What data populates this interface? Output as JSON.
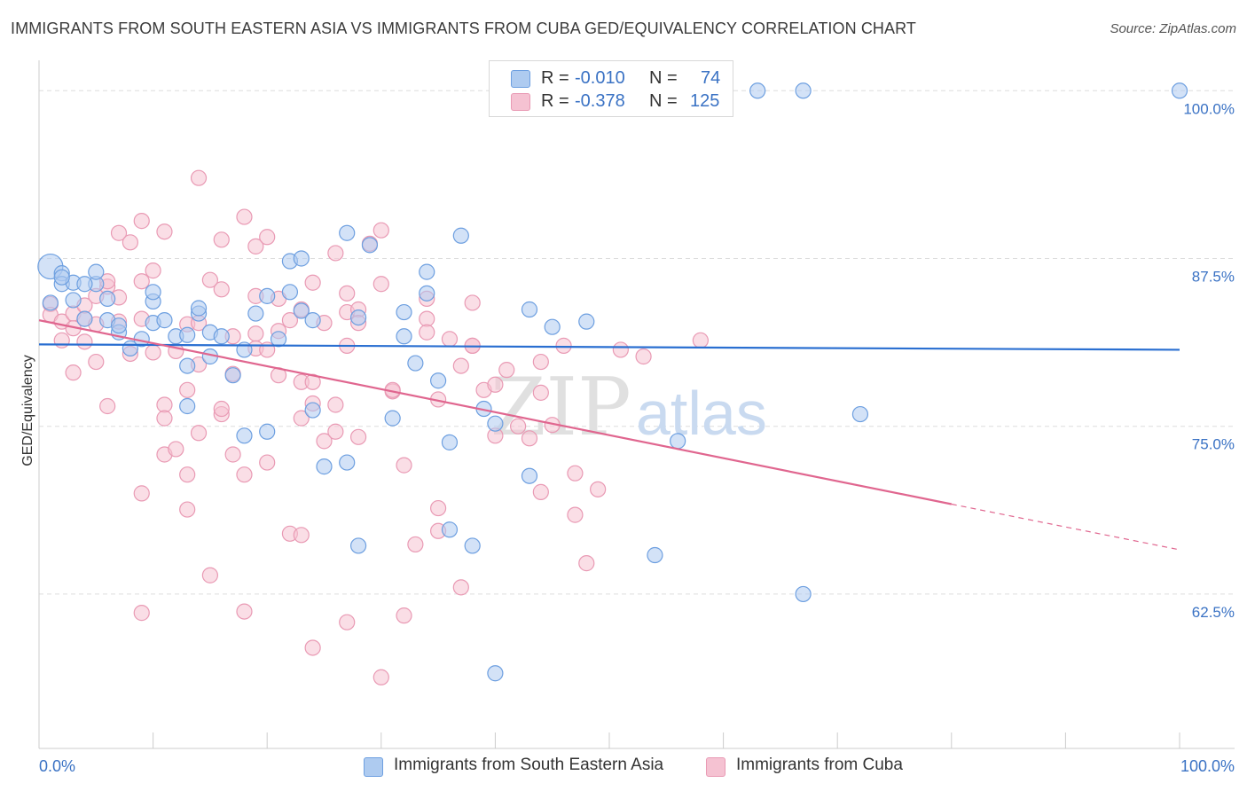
{
  "header": {
    "title": "IMMIGRANTS FROM SOUTH EASTERN ASIA VS IMMIGRANTS FROM CUBA GED/EQUIVALENCY CORRELATION CHART",
    "source": "Source: ZipAtlas.com"
  },
  "legend": {
    "rows": [
      {
        "r_label": "R =",
        "r_value": "-0.010",
        "n_label": "N =",
        "n_value": "74"
      },
      {
        "r_label": "R =",
        "r_value": "-0.378",
        "n_label": "N =",
        "n_value": "125"
      }
    ]
  },
  "watermark": {
    "zip": "ZIP",
    "atlas": "atlas"
  },
  "chart_data": {
    "type": "scatter",
    "title": "IMMIGRANTS FROM SOUTH EASTERN ASIA VS IMMIGRANTS FROM CUBA GED/EQUIVALENCY CORRELATION CHART",
    "ylabel": "GED/Equivalency",
    "xlim": [
      0,
      100
    ],
    "ylim": [
      51,
      102
    ],
    "x_tick_labels": [
      "0.0%",
      "100.0%"
    ],
    "y_ticks": [
      {
        "value": 100,
        "label": "100.0%"
      },
      {
        "value": 87.5,
        "label": "87.5%"
      },
      {
        "value": 75,
        "label": "75.0%"
      },
      {
        "value": 62.5,
        "label": "62.5%"
      }
    ],
    "grid": true,
    "legend_position": "bottom",
    "series": [
      {
        "name": "Immigrants from South Eastern Asia",
        "color": "#6d9fe0",
        "fill": "#aecbf0",
        "r": "-0.010",
        "n": "74",
        "trend": {
          "x0": 0,
          "y0": 81.1,
          "x1": 100,
          "y1": 80.7
        },
        "points": [
          [
            1,
            86.9
          ],
          [
            2,
            86.4
          ],
          [
            2,
            85.6
          ],
          [
            3,
            85.7
          ],
          [
            5,
            85.6
          ],
          [
            5,
            86.5
          ],
          [
            6,
            84.5
          ],
          [
            4,
            83.0
          ],
          [
            6,
            82.9
          ],
          [
            7,
            82.0
          ],
          [
            7,
            82.5
          ],
          [
            8,
            80.8
          ],
          [
            10,
            84.3
          ],
          [
            10,
            82.7
          ],
          [
            11,
            82.9
          ],
          [
            10,
            85.0
          ],
          [
            12,
            81.7
          ],
          [
            13,
            81.8
          ],
          [
            13,
            79.5
          ],
          [
            13,
            76.5
          ],
          [
            14,
            83.4
          ],
          [
            14,
            83.8
          ],
          [
            15,
            82.0
          ],
          [
            16,
            81.7
          ],
          [
            17,
            78.8
          ],
          [
            18,
            80.7
          ],
          [
            18,
            74.3
          ],
          [
            19,
            83.4
          ],
          [
            20,
            84.7
          ],
          [
            20,
            74.6
          ],
          [
            21,
            81.5
          ],
          [
            22,
            87.3
          ],
          [
            22,
            85.0
          ],
          [
            23,
            87.5
          ],
          [
            23,
            83.6
          ],
          [
            24,
            82.9
          ],
          [
            24,
            76.2
          ],
          [
            25,
            72.0
          ],
          [
            27,
            72.3
          ],
          [
            27,
            89.4
          ],
          [
            28,
            66.1
          ],
          [
            28,
            83.1
          ],
          [
            29,
            88.5
          ],
          [
            31,
            75.6
          ],
          [
            32,
            83.5
          ],
          [
            32,
            81.7
          ],
          [
            33,
            79.7
          ],
          [
            34,
            86.5
          ],
          [
            34,
            84.9
          ],
          [
            35,
            78.4
          ],
          [
            36,
            73.8
          ],
          [
            36,
            67.3
          ],
          [
            37,
            89.2
          ],
          [
            38,
            66.1
          ],
          [
            39,
            76.3
          ],
          [
            40,
            75.2
          ],
          [
            40,
            56.6
          ],
          [
            43,
            83.7
          ],
          [
            43,
            71.3
          ],
          [
            45,
            82.4
          ],
          [
            48,
            82.8
          ],
          [
            54,
            65.4
          ],
          [
            56,
            73.9
          ],
          [
            72,
            75.9
          ],
          [
            63,
            100
          ],
          [
            67,
            100
          ],
          [
            100,
            100
          ],
          [
            67,
            62.5
          ],
          [
            1,
            84.2
          ],
          [
            4,
            85.6
          ],
          [
            2,
            86.1
          ],
          [
            3,
            84.4
          ],
          [
            9,
            81.5
          ],
          [
            15,
            80.2
          ]
        ]
      },
      {
        "name": "Immigrants from Cuba",
        "color": "#e99ab4",
        "fill": "#f5c2d2",
        "r": "-0.378",
        "n": "125",
        "trend": {
          "x0": 0,
          "y0": 82.9,
          "x1": 80,
          "y1": 69.2
        },
        "trend_dashed": {
          "x0": 80,
          "y0": 69.2,
          "x1": 100,
          "y1": 65.8
        },
        "points": [
          [
            1,
            84.1
          ],
          [
            1,
            83.3
          ],
          [
            2,
            82.8
          ],
          [
            2,
            81.4
          ],
          [
            3,
            83.4
          ],
          [
            3,
            82.3
          ],
          [
            3,
            79.0
          ],
          [
            4,
            83.0
          ],
          [
            4,
            84.0
          ],
          [
            4,
            81.3
          ],
          [
            5,
            84.7
          ],
          [
            5,
            82.6
          ],
          [
            5,
            79.8
          ],
          [
            6,
            85.4
          ],
          [
            6,
            85.8
          ],
          [
            6,
            76.5
          ],
          [
            7,
            84.6
          ],
          [
            7,
            89.4
          ],
          [
            7,
            82.8
          ],
          [
            8,
            88.7
          ],
          [
            8,
            80.4
          ],
          [
            9,
            90.3
          ],
          [
            9,
            85.8
          ],
          [
            9,
            83.0
          ],
          [
            9,
            70.0
          ],
          [
            9,
            61.1
          ],
          [
            10,
            86.6
          ],
          [
            10,
            80.5
          ],
          [
            11,
            76.6
          ],
          [
            11,
            75.6
          ],
          [
            11,
            72.9
          ],
          [
            11,
            89.5
          ],
          [
            12,
            73.3
          ],
          [
            12,
            80.6
          ],
          [
            13,
            82.6
          ],
          [
            13,
            77.7
          ],
          [
            13,
            71.4
          ],
          [
            13,
            68.8
          ],
          [
            14,
            79.6
          ],
          [
            14,
            74.5
          ],
          [
            14,
            82.7
          ],
          [
            14,
            93.5
          ],
          [
            15,
            85.9
          ],
          [
            15,
            63.9
          ],
          [
            16,
            75.9
          ],
          [
            16,
            76.3
          ],
          [
            16,
            88.9
          ],
          [
            16,
            85.2
          ],
          [
            17,
            81.7
          ],
          [
            17,
            78.9
          ],
          [
            17,
            72.9
          ],
          [
            18,
            71.4
          ],
          [
            18,
            90.6
          ],
          [
            18,
            61.2
          ],
          [
            19,
            84.7
          ],
          [
            19,
            88.4
          ],
          [
            19,
            81.9
          ],
          [
            19,
            80.8
          ],
          [
            20,
            72.3
          ],
          [
            20,
            89.1
          ],
          [
            20,
            80.7
          ],
          [
            21,
            84.5
          ],
          [
            21,
            82.1
          ],
          [
            21,
            78.8
          ],
          [
            22,
            82.9
          ],
          [
            22,
            67.0
          ],
          [
            23,
            83.7
          ],
          [
            23,
            78.3
          ],
          [
            23,
            75.6
          ],
          [
            23,
            66.9
          ],
          [
            24,
            85.7
          ],
          [
            24,
            78.3
          ],
          [
            24,
            76.7
          ],
          [
            24,
            58.5
          ],
          [
            25,
            82.7
          ],
          [
            25,
            73.9
          ],
          [
            26,
            87.9
          ],
          [
            26,
            76.6
          ],
          [
            26,
            74.6
          ],
          [
            27,
            81.0
          ],
          [
            27,
            83.5
          ],
          [
            27,
            60.4
          ],
          [
            28,
            83.7
          ],
          [
            28,
            82.7
          ],
          [
            28,
            74.2
          ],
          [
            29,
            88.6
          ],
          [
            30,
            85.6
          ],
          [
            30,
            89.6
          ],
          [
            30,
            56.3
          ],
          [
            31,
            77.6
          ],
          [
            31,
            77.7
          ],
          [
            32,
            72.1
          ],
          [
            32,
            60.9
          ],
          [
            33,
            66.2
          ],
          [
            34,
            84.5
          ],
          [
            34,
            83.0
          ],
          [
            34,
            82.0
          ],
          [
            35,
            77.0
          ],
          [
            35,
            67.2
          ],
          [
            35,
            68.9
          ],
          [
            36,
            81.5
          ],
          [
            37,
            79.5
          ],
          [
            37,
            63.0
          ],
          [
            38,
            81.0
          ],
          [
            38,
            81.0
          ],
          [
            39,
            77.7
          ],
          [
            40,
            78.1
          ],
          [
            40,
            74.3
          ],
          [
            41,
            79.2
          ],
          [
            42,
            75.0
          ],
          [
            43,
            74.1
          ],
          [
            44,
            79.8
          ],
          [
            44,
            77.5
          ],
          [
            44,
            70.1
          ],
          [
            45,
            75.1
          ],
          [
            46,
            81.0
          ],
          [
            47,
            71.5
          ],
          [
            47,
            68.4
          ],
          [
            48,
            64.8
          ],
          [
            49,
            70.3
          ],
          [
            51,
            80.7
          ],
          [
            53,
            80.2
          ],
          [
            58,
            81.4
          ],
          [
            38,
            84.2
          ],
          [
            27,
            84.9
          ]
        ]
      }
    ]
  }
}
